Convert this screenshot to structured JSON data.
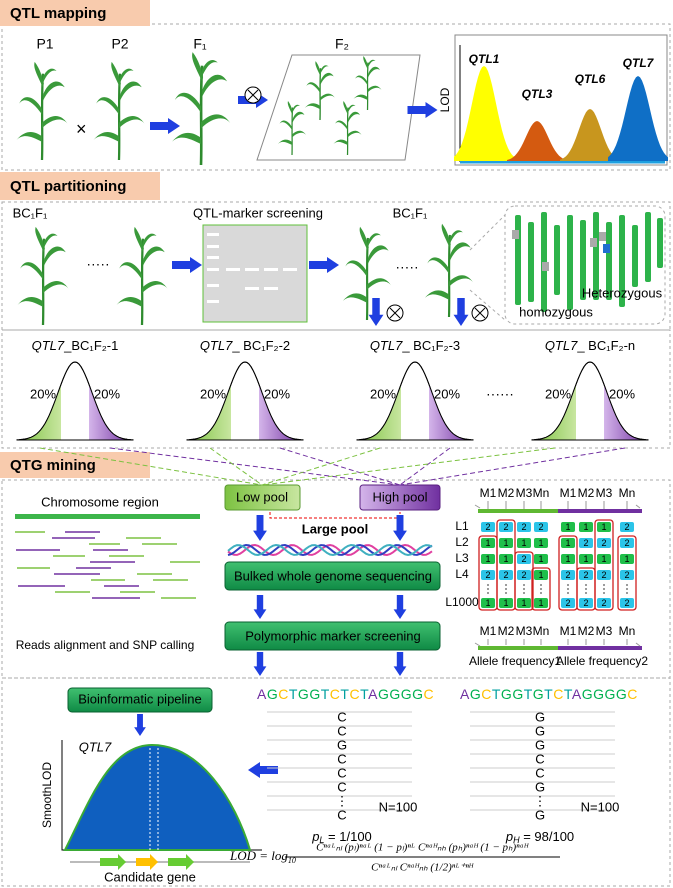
{
  "sections": {
    "mapping": "QTL mapping",
    "partitioning": "QTL partitioning",
    "mining": "QTG mining"
  },
  "mapping": {
    "parents": [
      "P1",
      "P2"
    ],
    "f1": "F₁",
    "f2": "F₂",
    "lod_axis": "LOD",
    "peaks": [
      "QTL1",
      "QTL3",
      "QTL6",
      "QTL7"
    ]
  },
  "partitioning": {
    "bc_left": "BC₁F₁",
    "dots_left": "·····",
    "screening": "QTL-marker screening",
    "bc_right": "BC₁F₁",
    "dots_right": "·····",
    "heterozygous": "Heterozygous",
    "homozygous": "homozygous",
    "populations": [
      {
        "qtl": "QTL7",
        "name": "_BC₁F₂-1",
        "low": "20%",
        "high": "20%"
      },
      {
        "qtl": "QTL7",
        "name": "_ BC₁F₂-2",
        "low": "20%",
        "high": "20%"
      },
      {
        "qtl": "QTL7",
        "name": "_ BC₁F₂-3",
        "low": "20%",
        "high": "20%"
      },
      {
        "qtl": "QTL7",
        "name": "_ BC₁F₂-n",
        "low": "20%",
        "high": "20%"
      }
    ],
    "dots": "······"
  },
  "mining": {
    "chromosome": "Chromosome region",
    "reads": "Reads alignment and SNP calling",
    "low_pool": "Low pool",
    "high_pool": "High pool",
    "large_pool": "Large pool",
    "sequencing": "Bulked whole genome sequencing",
    "screening": "Polymorphic marker screening",
    "markers_top": [
      "M1",
      "M2",
      "M3",
      "Mn",
      "M1",
      "M2",
      "M3",
      "Mn"
    ],
    "markers_bottom": [
      "M1",
      "M2",
      "M3",
      "Mn",
      "M1",
      "M2",
      "M3",
      "Mn"
    ],
    "rows": [
      {
        "label": "L1",
        "cells": [
          "2",
          "2",
          "2",
          "2",
          "1",
          "1",
          "1",
          "2"
        ]
      },
      {
        "label": "L2",
        "cells": [
          "1",
          "1",
          "1",
          "1",
          "1",
          "2",
          "2",
          "2"
        ]
      },
      {
        "label": "L3",
        "cells": [
          "1",
          "1",
          "2",
          "1",
          "1",
          "1",
          "1",
          "1"
        ]
      },
      {
        "label": "L4",
        "cells": [
          "2",
          "2",
          "2",
          "1",
          "2",
          "2",
          "2",
          "2"
        ]
      },
      {
        "label": "L1000",
        "cells": [
          "1",
          "1",
          "1",
          "1",
          "2",
          "2",
          "2",
          "2"
        ]
      }
    ],
    "freq1": "Allele frequency1",
    "freq2": "Allele frequency2"
  },
  "analysis": {
    "pipeline": "Bioinformatic pipeline",
    "qtl": "QTL7",
    "axis": "SmoothLOD",
    "gene": "Candidate gene",
    "low": {
      "sequence": [
        "A",
        "G",
        "C",
        "T",
        "G",
        "G",
        "T",
        "C",
        "T",
        "C",
        "T",
        "A",
        "G",
        "G",
        "G",
        "G",
        "C"
      ],
      "alleles": [
        "C",
        "C",
        "G",
        "C",
        "C",
        "C",
        "⋮",
        "C"
      ],
      "n": "N=100",
      "p": "p",
      "sub": "L",
      "freq": " = 1/100"
    },
    "high": {
      "sequence": [
        "A",
        "G",
        "C",
        "T",
        "G",
        "G",
        "T",
        "G",
        "T",
        "C",
        "T",
        "A",
        "G",
        "G",
        "G",
        "G",
        "C"
      ],
      "alleles": [
        "G",
        "G",
        "G",
        "C",
        "C",
        "G",
        "⋮",
        "G"
      ],
      "n": "N=100",
      "p": "p",
      "sub": "H",
      "freq": " = 98/100"
    },
    "formula": {
      "lhs": "LOD = log",
      "base": "10",
      "numerator": "Cⁿᵃᴸₙₗ (pₗ)ⁿᵃᴸ (1 − pₗ)ⁿᴸ Cⁿᵃᴴₙₕ (pₕ)ⁿᵃᴴ (1 − pₕ)ⁿᵃᴴ",
      "denominator": "Cⁿᵃᴸₙₗ Cⁿᵃᴴₙₕ (1/2)ⁿᴸ⁺ⁿᴴ"
    }
  }
}
